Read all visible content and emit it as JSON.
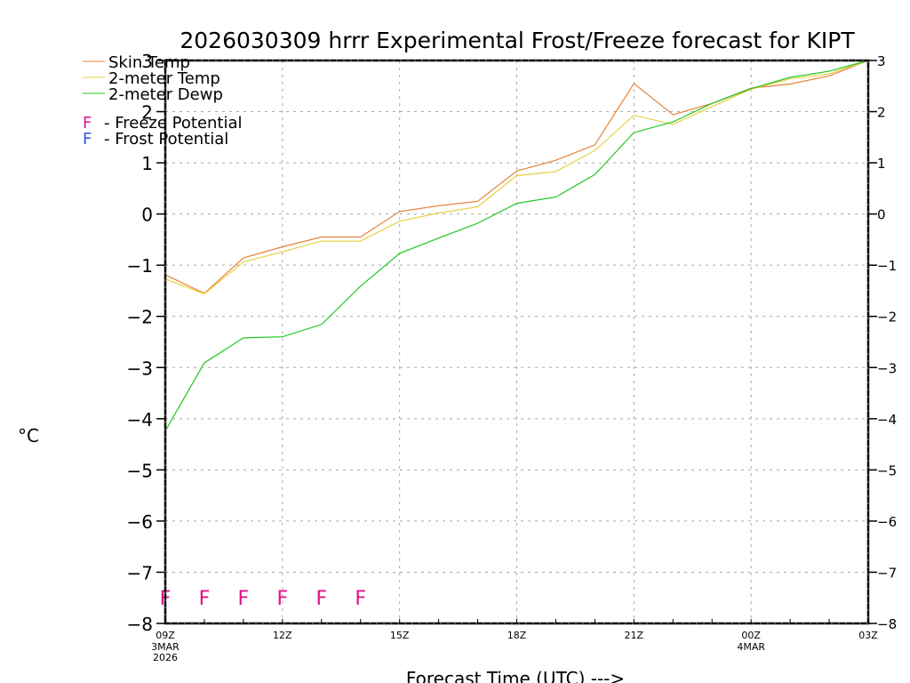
{
  "chart_data": {
    "type": "line",
    "title": "2026030309 hrrr Experimental Frost/Freeze forecast for KIPT",
    "xlabel": "Forecast Time (UTC) --->",
    "ylabel": "°C",
    "ylim": [
      -8,
      3
    ],
    "yticks": [
      3,
      2,
      1,
      0,
      -1,
      -2,
      -3,
      -4,
      -5,
      -6,
      -7,
      -8
    ],
    "grid": true,
    "x_hours": [
      0,
      1,
      2,
      3,
      4,
      5,
      6,
      7,
      8,
      9,
      10,
      11,
      12,
      13,
      14,
      15,
      16,
      17,
      18
    ],
    "xticks": [
      {
        "hour": 0,
        "label": "09Z",
        "sub": [
          "3MAR",
          "2026"
        ]
      },
      {
        "hour": 3,
        "label": "12Z",
        "sub": []
      },
      {
        "hour": 6,
        "label": "15Z",
        "sub": []
      },
      {
        "hour": 9,
        "label": "18Z",
        "sub": []
      },
      {
        "hour": 12,
        "label": "21Z",
        "sub": []
      },
      {
        "hour": 15,
        "label": "00Z",
        "sub": [
          "4MAR"
        ]
      },
      {
        "hour": 18,
        "label": "03Z",
        "sub": []
      }
    ],
    "series": [
      {
        "name": "Skin Temp",
        "color": "#e8823a",
        "values": [
          -1.19,
          -1.55,
          -0.86,
          -0.64,
          -0.45,
          -0.45,
          0.05,
          0.16,
          0.25,
          0.84,
          1.05,
          1.35,
          2.55,
          1.94,
          2.16,
          2.46,
          2.54,
          2.7,
          3.0
        ]
      },
      {
        "name": "2-meter Temp",
        "color": "#e8d040",
        "values": [
          -1.27,
          -1.56,
          -0.94,
          -0.74,
          -0.53,
          -0.53,
          -0.14,
          0.02,
          0.14,
          0.75,
          0.83,
          1.24,
          1.93,
          1.75,
          2.1,
          2.44,
          2.64,
          2.74,
          3.0
        ]
      },
      {
        "name": "2-meter Dewp",
        "color": "#20c820",
        "values": [
          -4.24,
          -2.91,
          -2.42,
          -2.4,
          -2.16,
          -1.41,
          -0.77,
          -0.47,
          -0.18,
          0.21,
          0.33,
          0.77,
          1.59,
          1.8,
          2.16,
          2.45,
          2.67,
          2.79,
          3.0
        ]
      }
    ],
    "markers": {
      "symbol": "F",
      "freeze_hours": [
        0,
        1,
        2,
        3,
        4,
        5
      ],
      "frost_hours": [],
      "y_value": -7.5
    },
    "legend": {
      "placement": "top-left",
      "lines": [
        {
          "label": "Skin Temp",
          "color": "#e8823a"
        },
        {
          "label": "2-meter Temp",
          "color": "#e8d040"
        },
        {
          "label": "2-meter Dewp",
          "color": "#20c820"
        }
      ],
      "symbols": [
        {
          "symbol": "F",
          "label": "- Freeze Potential",
          "color": "#e0108a"
        },
        {
          "symbol": "F",
          "label": "- Frost Potential",
          "color": "#3050e0"
        }
      ]
    }
  }
}
